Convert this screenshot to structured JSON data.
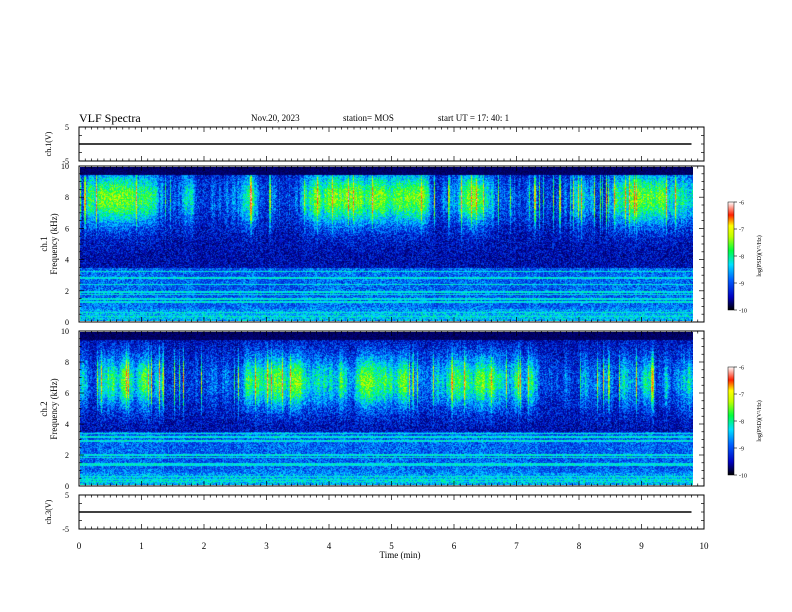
{
  "header": {
    "title": "VLF Spectra",
    "date": "Nov.20, 2023",
    "station": "station= MOS",
    "start": "start  UT  =   17: 40: 1"
  },
  "chart_data": [
    {
      "type": "line",
      "ylabel": "ch.1(V)",
      "ylim": [
        -5,
        5
      ],
      "yticks": [
        "5",
        "-5"
      ],
      "series": [
        {
          "values": [
            0,
            0
          ]
        }
      ],
      "x": [
        0,
        9.8
      ]
    },
    {
      "type": "heatmap",
      "ylabel_line1": "ch.1",
      "ylabel_line2": "Frequency (kHz)",
      "ylim": [
        0,
        10
      ],
      "yticks": [
        "0",
        "2",
        "4",
        "6",
        "8",
        "10"
      ],
      "colorbar": {
        "label": "log(PSD)(V²/Hz)",
        "range": [
          -10,
          -6
        ],
        "ticks": [
          "-6",
          "-7",
          "-8",
          "-9",
          "-10"
        ]
      }
    },
    {
      "type": "heatmap",
      "ylabel_line1": "ch.2",
      "ylabel_line2": "Frequency (kHz)",
      "ylim": [
        0,
        10
      ],
      "yticks": [
        "0",
        "2",
        "4",
        "6",
        "8",
        "10"
      ],
      "colorbar": {
        "label": "log(PSD)(V²/Hz)",
        "range": [
          -10,
          -6
        ],
        "ticks": [
          "-6",
          "-7",
          "-8",
          "-9",
          "-10"
        ]
      }
    },
    {
      "type": "line",
      "ylabel": "ch.3(V)",
      "ylim": [
        -5,
        5
      ],
      "yticks": [
        "5",
        "-5"
      ],
      "series": [
        {
          "values": [
            0,
            0
          ]
        }
      ],
      "x": [
        0,
        9.8
      ]
    }
  ],
  "xaxis": {
    "xlabel": "Time (min)",
    "xlim": [
      0,
      10
    ],
    "ticks": [
      "0",
      "1",
      "2",
      "3",
      "4",
      "5",
      "6",
      "7",
      "8",
      "9",
      "10"
    ]
  },
  "colors": {
    "frame": "#000000",
    "low": "#000033",
    "mid": "#00ff00",
    "high": "#ff0000"
  }
}
